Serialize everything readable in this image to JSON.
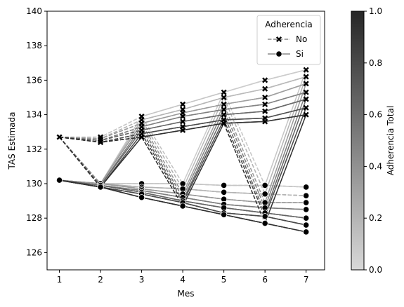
{
  "chart_data": {
    "type": "line",
    "xlabel": "Mes",
    "ylabel": "TAS Estimada",
    "x": [
      1,
      2,
      3,
      4,
      5,
      6,
      7
    ],
    "xticks": [
      1,
      2,
      3,
      4,
      5,
      6,
      7
    ],
    "yticks": [
      126,
      128,
      130,
      132,
      134,
      136,
      138,
      140
    ],
    "xlim": [
      0.7,
      7.45
    ],
    "ylim": [
      125,
      140
    ],
    "grid": false,
    "legend": {
      "title": "Adherencia",
      "placement": "top-right",
      "entries": [
        {
          "label": "No",
          "marker": "x",
          "linestyle": "dashed"
        },
        {
          "label": "Si",
          "marker": "circle",
          "linestyle": "solid"
        }
      ]
    },
    "colorbar": {
      "label": "Adherencia Total",
      "range": [
        0,
        1
      ],
      "ticks": [
        "0.0",
        "0.2",
        "0.4",
        "0.6",
        "0.8",
        "1.0"
      ],
      "color_low": "#d8d8d8",
      "color_high": "#262626"
    },
    "levels": {
      "no": [
        [
          132.7,
          133.9,
          134.6,
          135.3,
          136.0,
          136.6
        ],
        [
          132.6,
          133.7,
          134.3,
          135.0,
          135.5,
          136.2
        ],
        [
          132.6,
          133.5,
          134.1,
          134.6,
          135.0,
          135.8
        ],
        [
          132.5,
          133.3,
          133.9,
          134.3,
          134.6,
          135.3
        ],
        [
          132.5,
          133.1,
          133.6,
          134.0,
          134.2,
          134.9
        ],
        [
          132.4,
          132.9,
          133.3,
          133.7,
          133.8,
          134.4
        ],
        [
          132.4,
          132.7,
          133.1,
          133.5,
          133.6,
          134.0
        ]
      ],
      "si": [
        [
          130.0,
          130.0,
          130.0,
          129.9,
          129.9,
          129.8
        ],
        [
          130.0,
          129.8,
          129.7,
          129.5,
          129.4,
          129.3
        ],
        [
          130.0,
          129.7,
          129.4,
          129.1,
          128.9,
          128.9
        ],
        [
          129.9,
          129.6,
          129.2,
          128.8,
          128.6,
          128.5
        ],
        [
          129.9,
          129.5,
          129.0,
          128.6,
          128.3,
          128.0
        ],
        [
          129.8,
          129.4,
          128.9,
          128.3,
          128.1,
          127.6
        ],
        [
          129.8,
          129.2,
          128.7,
          128.2,
          127.7,
          127.2
        ]
      ]
    },
    "month1": {
      "no": 132.7,
      "si": 130.2
    },
    "series_adherence": [
      0.1,
      0.2,
      0.35,
      0.5,
      0.65,
      0.8,
      0.95
    ]
  }
}
